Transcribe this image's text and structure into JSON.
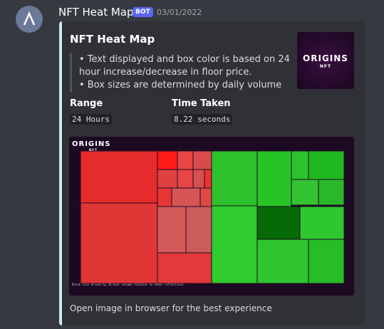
{
  "message": {
    "author": "NFT Heat Map",
    "badge": "BOT",
    "timestamp": "03/01/2022"
  },
  "embed": {
    "title": "NFT Heat Map",
    "description": [
      "• Text displayed and box color is based on 24",
      "hour increase/decrease in floor price.",
      "• Box sizes are determined by daily volume"
    ],
    "thumbnail": {
      "logo": "ORIGINS",
      "sublogo": "NFT"
    },
    "fields": [
      {
        "name": "Range",
        "value": "24 Hours"
      },
      {
        "name": "Time Taken",
        "value": "8.22 seconds"
      }
    ],
    "image": {
      "logo": "ORIGINS",
      "sublogo": "NFT",
      "caption": "Block size driven by 24-hour volume relative to other collections."
    },
    "footer": "Open image in browser for the best experience"
  }
}
